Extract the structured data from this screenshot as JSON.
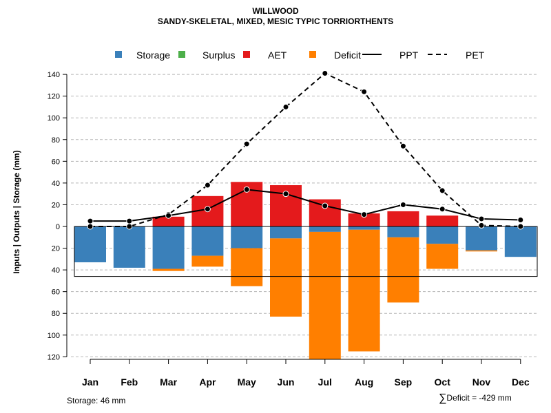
{
  "chart_data": {
    "type": "bar",
    "title": "WILLWOOD",
    "subtitle": "SANDY-SKELETAL, MIXED, MESIC TYPIC TORRIORTHENTS",
    "ylabel": "Inputs | Outputs | Storage    (mm)",
    "xlabel": "",
    "ylim": [
      -120,
      140
    ],
    "y_ticks": [
      140,
      120,
      100,
      80,
      60,
      40,
      20,
      0,
      -20,
      -40,
      -60,
      -80,
      -100,
      -120
    ],
    "y_tick_labels": [
      "140",
      "120",
      "100",
      "80",
      "60",
      "40",
      "20",
      "0",
      "20",
      "40",
      "60",
      "80",
      "100",
      "120"
    ],
    "grid": true,
    "legend_position": "top",
    "categories": [
      "Jan",
      "Feb",
      "Mar",
      "Apr",
      "May",
      "Jun",
      "Jul",
      "Aug",
      "Sep",
      "Oct",
      "Nov",
      "Dec"
    ],
    "legend": [
      {
        "name": "Storage",
        "kind": "box",
        "color": "#3A80BA"
      },
      {
        "name": "Surplus",
        "kind": "box",
        "color": "#4DAF4A"
      },
      {
        "name": "AET",
        "kind": "box",
        "color": "#E41A1C"
      },
      {
        "name": "Deficit",
        "kind": "box",
        "color": "#FF7F00"
      },
      {
        "name": "PPT",
        "kind": "solid-line",
        "color": "#000000"
      },
      {
        "name": "PET",
        "kind": "dashed-line",
        "color": "#000000"
      }
    ],
    "series": [
      {
        "name": "AET",
        "color": "#E41A1C",
        "values": [
          0,
          0,
          9,
          28,
          41,
          38,
          25,
          12,
          14,
          10,
          0,
          0
        ]
      },
      {
        "name": "Surplus",
        "color": "#4DAF4A",
        "values": [
          0,
          0,
          0,
          0,
          0,
          0,
          0,
          0,
          0,
          0,
          0,
          0
        ]
      },
      {
        "name": "Storage",
        "color": "#3A80BA",
        "values": [
          -33,
          -38,
          -39,
          -27,
          -20,
          -11,
          -5,
          -3,
          -10,
          -16,
          -22,
          -28
        ]
      },
      {
        "name": "Deficit",
        "color": "#FF7F00",
        "values": [
          0,
          0,
          -2,
          -10,
          -35,
          -72,
          -117,
          -112,
          -60,
          -23,
          -1,
          0
        ]
      },
      {
        "name": "PPT",
        "color": "#000000",
        "values": [
          5,
          5,
          10,
          16,
          34,
          30,
          19,
          11,
          20,
          16,
          7,
          6
        ]
      },
      {
        "name": "PET",
        "color": "#000000",
        "values": [
          0,
          0,
          11,
          38,
          76,
          110,
          141,
          124,
          74,
          33,
          1,
          0
        ]
      }
    ],
    "storage_capacity": -46
  },
  "footer": {
    "storage": "Storage: 46 mm",
    "sigma": "∑",
    "deficit": "Deficit = -429 mm"
  }
}
